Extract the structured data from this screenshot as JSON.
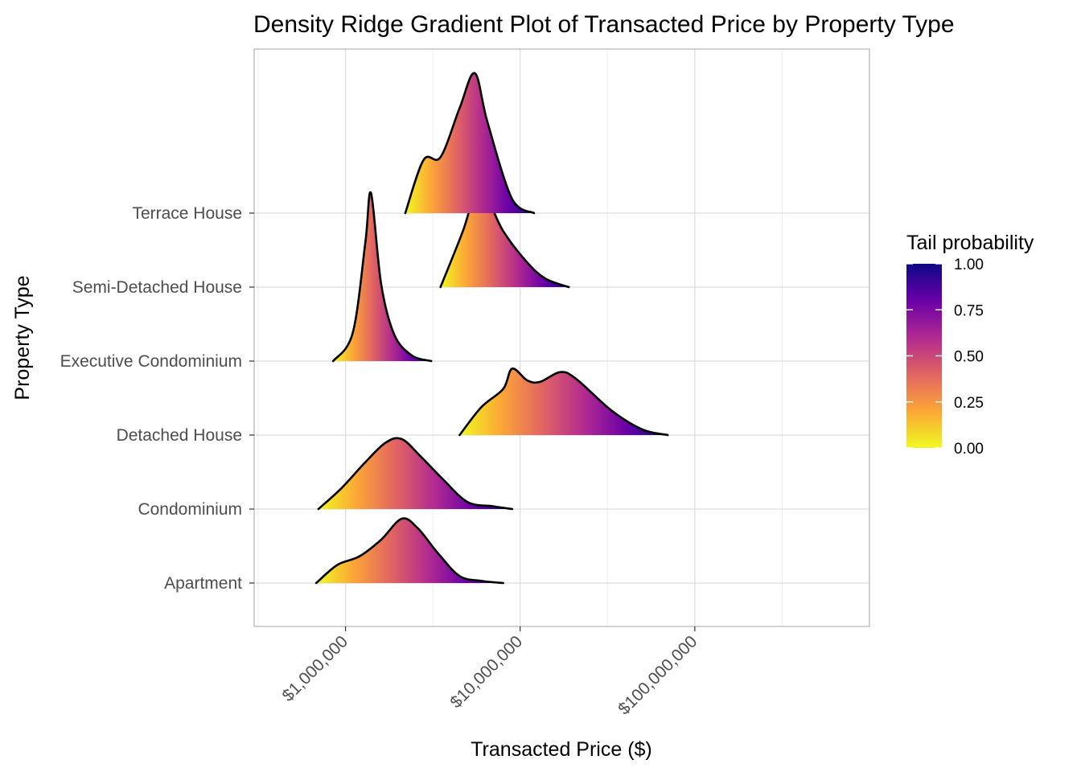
{
  "chart_data": {
    "type": "density-ridge-gradient",
    "title": "Density Ridge Gradient Plot of Transacted Price by Property Type",
    "xlabel": "Transacted Price ($)",
    "ylabel": "Property Type",
    "x_scale": "log10",
    "xlim": [
      300000,
      1000000000
    ],
    "x_ticks": [
      {
        "value": 1000000,
        "label": "$1,000,000"
      },
      {
        "value": 10000000,
        "label": "$10,000,000"
      },
      {
        "value": 100000000,
        "label": "$100,000,000"
      }
    ],
    "grid": true,
    "legend": {
      "title": "Tail probability",
      "position": "right",
      "ticks": [
        "1.00",
        "0.75",
        "0.50",
        "0.25",
        "0.00"
      ],
      "range": [
        0,
        1
      ],
      "colors": [
        "#f0f921",
        "#fca636",
        "#e16462",
        "#b12a90",
        "#6a00a8",
        "#0d0887"
      ]
    },
    "series": [
      {
        "category": "Apartment",
        "points": [
          [
            680000,
            0
          ],
          [
            900000,
            0.26
          ],
          [
            1200000,
            0.38
          ],
          [
            1600000,
            0.62
          ],
          [
            2100000,
            0.92
          ],
          [
            2600000,
            0.78
          ],
          [
            3400000,
            0.42
          ],
          [
            4500000,
            0.1
          ],
          [
            6000000,
            0.03
          ],
          [
            8000000,
            0
          ]
        ]
      },
      {
        "category": "Condominium",
        "points": [
          [
            700000,
            0
          ],
          [
            950000,
            0.3
          ],
          [
            1300000,
            0.67
          ],
          [
            1700000,
            0.95
          ],
          [
            2100000,
            1.0
          ],
          [
            2700000,
            0.75
          ],
          [
            3600000,
            0.43
          ],
          [
            5000000,
            0.1
          ],
          [
            7000000,
            0.04
          ],
          [
            9000000,
            0
          ]
        ]
      },
      {
        "category": "Detached House",
        "points": [
          [
            4500000,
            0
          ],
          [
            6000000,
            0.4
          ],
          [
            8000000,
            0.66
          ],
          [
            9000000,
            0.95
          ],
          [
            11000000,
            0.78
          ],
          [
            13000000,
            0.76
          ],
          [
            17000000,
            0.9
          ],
          [
            21000000,
            0.8
          ],
          [
            33000000,
            0.36
          ],
          [
            50000000,
            0.08
          ],
          [
            70000000,
            0
          ]
        ]
      },
      {
        "category": "Executive Condominium",
        "points": [
          [
            850000,
            0
          ],
          [
            1100000,
            0.4
          ],
          [
            1300000,
            1.7
          ],
          [
            1400000,
            2.4
          ],
          [
            1600000,
            1.1
          ],
          [
            1900000,
            0.38
          ],
          [
            2400000,
            0.08
          ],
          [
            3100000,
            0
          ]
        ]
      },
      {
        "category": "Semi-Detached House",
        "points": [
          [
            3500000,
            0
          ],
          [
            4700000,
            0.8
          ],
          [
            5500000,
            1.3
          ],
          [
            6500000,
            1.25
          ],
          [
            8000000,
            0.8
          ],
          [
            11000000,
            0.35
          ],
          [
            14000000,
            0.12
          ],
          [
            19000000,
            0
          ]
        ]
      },
      {
        "category": "Terrace House",
        "points": [
          [
            2200000,
            0
          ],
          [
            2800000,
            0.76
          ],
          [
            3500000,
            0.8
          ],
          [
            4500000,
            1.5
          ],
          [
            5500000,
            2.0
          ],
          [
            6500000,
            1.3
          ],
          [
            9000000,
            0.2
          ],
          [
            12000000,
            0
          ]
        ]
      }
    ]
  }
}
